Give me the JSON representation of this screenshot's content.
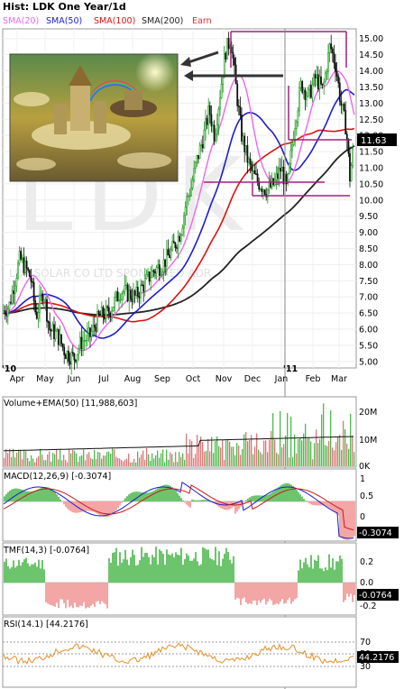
{
  "header": {
    "title": "Hist: LDK One Year/1d",
    "legend": [
      {
        "label": "SMA(20)",
        "color": "#ee66ee"
      },
      {
        "label": "SMA(50)",
        "color": "#1d1dcc"
      },
      {
        "label": "SMA(100)",
        "color": "#dd1111"
      },
      {
        "label": "SMA(200)",
        "color": "#222222"
      },
      {
        "label": "Earn",
        "color": "#cc3333"
      }
    ]
  },
  "watermark": {
    "ticker": "LDK",
    "name": "LDK SOLAR CO LTD SPONSORED ADR"
  },
  "chart_data": [
    {
      "type": "candlestick",
      "name": "price",
      "ylim": [
        4.8,
        15.3
      ],
      "y_ticks": [
        "15.00",
        "14.50",
        "14.00",
        "13.50",
        "13.00",
        "12.50",
        "12.00",
        "11.50",
        "11.00",
        "10.50",
        "10.00",
        "9.50",
        "9.00",
        "8.50",
        "8.00",
        "7.50",
        "7.00",
        "6.50",
        "6.00",
        "5.50",
        "5.00"
      ],
      "x_labels": [
        "'10",
        "Apr",
        "May",
        "Jun",
        "Jul",
        "Aug",
        "Sep",
        "Oct",
        "Nov",
        "Dec",
        "Jan",
        "'11",
        "Feb",
        "Mar"
      ],
      "last_price": "11.63",
      "approx_closes": [
        {
          "month": "Apr",
          "value": 6.6
        },
        {
          "month": "May",
          "value": 7.8
        },
        {
          "month": "Jun",
          "value": 5.6
        },
        {
          "month": "Jul",
          "value": 5.3
        },
        {
          "month": "Aug",
          "value": 6.7
        },
        {
          "month": "Sep",
          "value": 7.8
        },
        {
          "month": "Oct",
          "value": 10.4
        },
        {
          "month": "Nov",
          "value": 13.0
        },
        {
          "month": "Dec",
          "value": 10.6
        },
        {
          "month": "Jan",
          "value": 13.2
        },
        {
          "month": "Feb",
          "value": 13.4
        },
        {
          "month": "Mar",
          "value": 11.63
        }
      ]
    },
    {
      "type": "bar",
      "name": "volume",
      "title": "Volume+EMA(50) [11,988,603]",
      "y_ticks": [
        "20M",
        "10M",
        "0K"
      ]
    },
    {
      "type": "line",
      "name": "macd",
      "title": "MACD(12,26,9) [-0.3074]",
      "y_ticks": [
        "1",
        "0.5",
        "0"
      ],
      "last_value": "-0.3074"
    },
    {
      "type": "area",
      "name": "tmf",
      "title": "TMF(14,3) [-0.0764]",
      "y_ticks": [
        "0.2",
        "0.0",
        "-0.2"
      ],
      "last_value": "-0.0764"
    },
    {
      "type": "line",
      "name": "rsi",
      "title": "RSI(14.1) [44.2176]",
      "y_ticks": [
        "70",
        "50",
        "30"
      ],
      "last_value": "44.2176"
    }
  ]
}
